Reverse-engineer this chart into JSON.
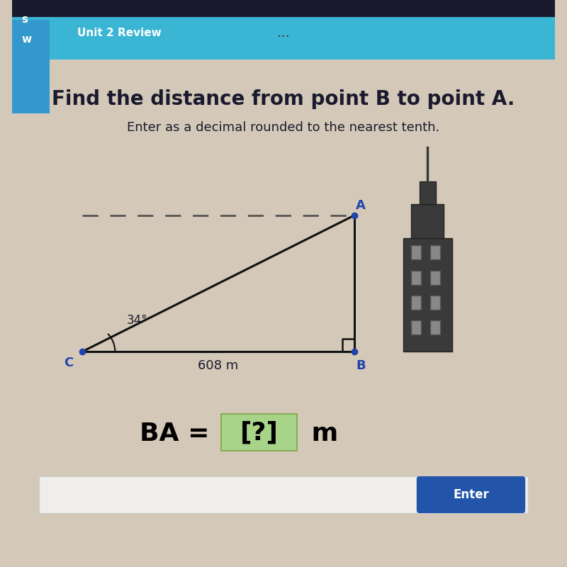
{
  "bg_color": "#d4c9b8",
  "header_color": "#3ab5d4",
  "header_text": "Unit 2 Review",
  "header_text_color": "#ffffff",
  "title_text": "Find the distance from point B to point A.",
  "subtitle_text": "Enter as a decimal rounded to the nearest tenth.",
  "title_color": "#1a1a2e",
  "subtitle_color": "#1a1a2e",
  "point_C": [
    0.13,
    0.38
  ],
  "point_B": [
    0.63,
    0.38
  ],
  "point_A": [
    0.63,
    0.62
  ],
  "angle_label": "34°",
  "distance_label": "608 m",
  "answer_prefix": "BA = ",
  "answer_bracket": "[?]",
  "answer_suffix": " m",
  "answer_bracket_bg": "#a8d48a",
  "answer_text_color": "#000000",
  "dashed_line_color": "#555555",
  "triangle_line_color": "#111111",
  "point_dot_color": "#2244aa",
  "label_color": "#2244aa",
  "right_angle_color": "#111111",
  "enter_btn_color": "#2255aa",
  "enter_btn_text": "Enter",
  "input_bar_color": "#f0eeea",
  "left_panel_color": "#3399cc",
  "left_panel_text": "w",
  "dots_color": "#333333"
}
